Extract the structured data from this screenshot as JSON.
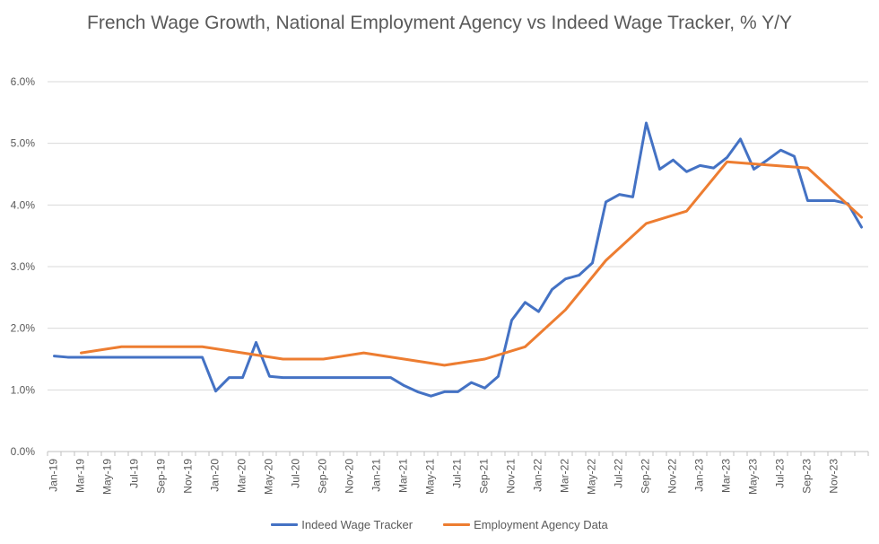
{
  "chart_data": {
    "type": "line",
    "title": "French Wage Growth, National Employment Agency vs Indeed Wage Tracker, % Y/Y",
    "xlabel": "",
    "ylabel": "",
    "ylim": [
      0,
      6
    ],
    "y_ticks": [
      "0.0%",
      "1.0%",
      "2.0%",
      "3.0%",
      "4.0%",
      "5.0%",
      "6.0%"
    ],
    "grid": "horizontal",
    "legend_position": "bottom",
    "x_tick_labels": [
      "Jan-19",
      "Mar-19",
      "May-19",
      "Jul-19",
      "Sep-19",
      "Nov-19",
      "Jan-20",
      "Mar-20",
      "May-20",
      "Jul-20",
      "Sep-20",
      "Nov-20",
      "Jan-21",
      "Mar-21",
      "May-21",
      "Jul-21",
      "Sep-21",
      "Nov-21",
      "Jan-22",
      "Mar-22",
      "May-22",
      "Jul-22",
      "Sep-22",
      "Nov-22",
      "Jan-23",
      "Mar-23",
      "May-23",
      "Jul-23",
      "Sep-23",
      "Nov-23"
    ],
    "months_count": 61,
    "series": [
      {
        "name": "Indeed Wage Tracker",
        "color": "#4472C4",
        "x": [
          0,
          1,
          2,
          3,
          4,
          5,
          6,
          7,
          8,
          9,
          10,
          11,
          12,
          13,
          14,
          15,
          16,
          17,
          18,
          19,
          20,
          21,
          22,
          23,
          24,
          25,
          26,
          27,
          28,
          29,
          30,
          31,
          32,
          33,
          34,
          35,
          36,
          37,
          38,
          39,
          40,
          41,
          42,
          43,
          44,
          45,
          46,
          47,
          48,
          49,
          50,
          51,
          52,
          53,
          54,
          55,
          56,
          57,
          58,
          59,
          60
        ],
        "values": [
          1.55,
          1.53,
          1.53,
          1.53,
          1.53,
          1.53,
          1.53,
          1.53,
          1.53,
          1.53,
          1.53,
          1.53,
          0.98,
          1.2,
          1.2,
          1.77,
          1.22,
          1.2,
          1.2,
          1.2,
          1.2,
          1.2,
          1.2,
          1.2,
          1.2,
          1.2,
          1.07,
          0.97,
          0.9,
          0.97,
          0.97,
          1.12,
          1.03,
          1.22,
          2.13,
          2.42,
          2.27,
          2.63,
          2.8,
          2.86,
          3.06,
          4.05,
          4.17,
          4.13,
          5.33,
          4.58,
          4.73,
          4.54,
          4.64,
          4.6,
          4.77,
          5.07,
          4.58,
          4.73,
          4.89,
          4.79,
          4.07,
          4.07,
          4.07,
          4.02,
          3.64
        ]
      },
      {
        "name": "Employment Agency Data",
        "color": "#ED7D31",
        "x": [
          2,
          5,
          8,
          11,
          14,
          17,
          20,
          23,
          26,
          29,
          32,
          35,
          38,
          41,
          44,
          47,
          50,
          53,
          56,
          59,
          60
        ],
        "values": [
          1.6,
          1.7,
          1.7,
          1.7,
          1.6,
          1.5,
          1.5,
          1.6,
          1.5,
          1.4,
          1.5,
          1.7,
          2.3,
          3.1,
          3.7,
          3.9,
          4.7,
          4.65,
          4.6,
          4.0,
          3.8
        ]
      }
    ]
  }
}
